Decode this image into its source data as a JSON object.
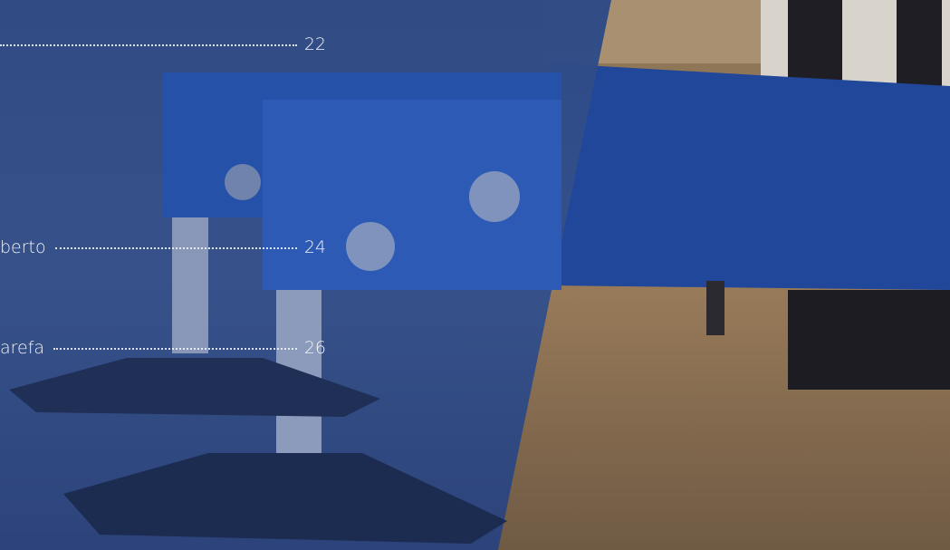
{
  "toc": [
    {
      "page": "22"
    },
    {
      "label": "berto",
      "page": "24"
    },
    {
      "label": "arefa",
      "page": "26"
    }
  ]
}
